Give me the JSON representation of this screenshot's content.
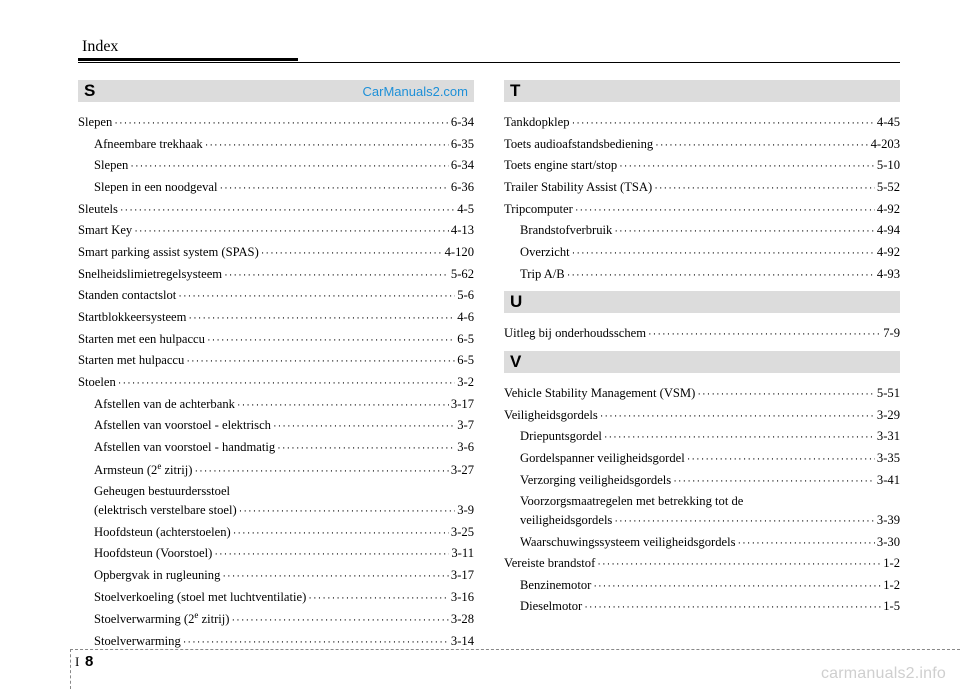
{
  "header": "Index",
  "watermark_top": "CarManuals2.com",
  "watermark_bottom": "carmanuals2.info",
  "page_prefix": "I",
  "page_number": "8",
  "left": [
    {
      "type": "section",
      "letter": "S",
      "watermark": true
    },
    {
      "label": "Slepen",
      "page": "6-34"
    },
    {
      "label": "Afneembare trekhaak",
      "page": "6-35",
      "sub": true
    },
    {
      "label": "Slepen",
      "page": "6-34",
      "sub": true
    },
    {
      "label": "Slepen in een noodgeval",
      "page": "6-36",
      "sub": true
    },
    {
      "label": "Sleutels",
      "page": "4-5"
    },
    {
      "label": "Smart Key",
      "page": "4-13"
    },
    {
      "label": "Smart parking assist system (SPAS)",
      "page": "4-120"
    },
    {
      "label": "Snelheidslimietregelsysteem",
      "page": "5-62"
    },
    {
      "label": "Standen contactslot",
      "page": "5-6"
    },
    {
      "label": "Startblokkeersysteem",
      "page": "4-6"
    },
    {
      "label": "Starten met een hulpaccu",
      "page": "6-5"
    },
    {
      "label": "Starten met hulpaccu",
      "page": "6-5"
    },
    {
      "label": "Stoelen",
      "page": "3-2"
    },
    {
      "label": "Afstellen van de achterbank",
      "page": "3-17",
      "sub": true
    },
    {
      "label": "Afstellen van voorstoel - elektrisch",
      "page": "3-7",
      "sub": true
    },
    {
      "label": "Afstellen van voorstoel - handmatig",
      "page": "3-6",
      "sub": true
    },
    {
      "label_html": "Armsteun (2<span class=\"sup\">e</span> zitrij)",
      "page": "3-27",
      "sub": true
    },
    {
      "label": "Geheugen bestuurdersstoel",
      "sub": true,
      "nowrap": true
    },
    {
      "label": "(elektrisch verstelbare stoel)",
      "page": "3-9",
      "sub": true,
      "wrap": true
    },
    {
      "label": "Hoofdsteun (achterstoelen)",
      "page": "3-25",
      "sub": true
    },
    {
      "label": "Hoofdsteun (Voorstoel)",
      "page": "3-11",
      "sub": true
    },
    {
      "label": "Opbergvak in rugleuning",
      "page": "3-17",
      "sub": true
    },
    {
      "label": "Stoelverkoeling (stoel met luchtventilatie)",
      "page": "3-16",
      "sub": true
    },
    {
      "label_html": "Stoelverwarming (2<span class=\"sup\">e</span> zitrij)",
      "page": "3-28",
      "sub": true
    },
    {
      "label": "Stoelverwarming",
      "page": "3-14",
      "sub": true
    }
  ],
  "right": [
    {
      "type": "section",
      "letter": "T"
    },
    {
      "label": "Tankdopklep",
      "page": "4-45"
    },
    {
      "label": "Toets audioafstandsbediening",
      "page": "4-203"
    },
    {
      "label": "Toets engine start/stop",
      "page": "5-10"
    },
    {
      "label": "Trailer Stability Assist (TSA)",
      "page": "5-52"
    },
    {
      "label": "Tripcomputer",
      "page": "4-92"
    },
    {
      "label": "Brandstofverbruik",
      "page": "4-94",
      "sub": true
    },
    {
      "label": "Overzicht",
      "page": "4-92",
      "sub": true
    },
    {
      "label": "Trip A/B",
      "page": "4-93",
      "sub": true
    },
    {
      "type": "gap"
    },
    {
      "type": "section",
      "letter": "U"
    },
    {
      "label": "Uitleg bij onderhoudsschem",
      "page": "7-9"
    },
    {
      "type": "gap"
    },
    {
      "type": "section",
      "letter": "V"
    },
    {
      "label": "Vehicle Stability Management (VSM)",
      "page": "5-51"
    },
    {
      "label": "Veiligheidsgordels",
      "page": "3-29"
    },
    {
      "label": "Driepuntsgordel",
      "page": "3-31",
      "sub": true
    },
    {
      "label": "Gordelspanner veiligheidsgordel",
      "page": "3-35",
      "sub": true
    },
    {
      "label": "Verzorging veiligheidsgordels",
      "page": "3-41",
      "sub": true
    },
    {
      "label": "Voorzorgsmaatregelen met betrekking tot de",
      "sub": true,
      "nowrap": true
    },
    {
      "label": "veiligheidsgordels",
      "page": "3-39",
      "sub": true,
      "wrap": true
    },
    {
      "label": "Waarschuwingssysteem veiligheidsgordels",
      "page": "3-30",
      "sub": true
    },
    {
      "label": "Vereiste brandstof",
      "page": "1-2"
    },
    {
      "label": "Benzinemotor",
      "page": "1-2",
      "sub": true
    },
    {
      "label": "Dieselmotor",
      "page": "1-5",
      "sub": true
    }
  ]
}
